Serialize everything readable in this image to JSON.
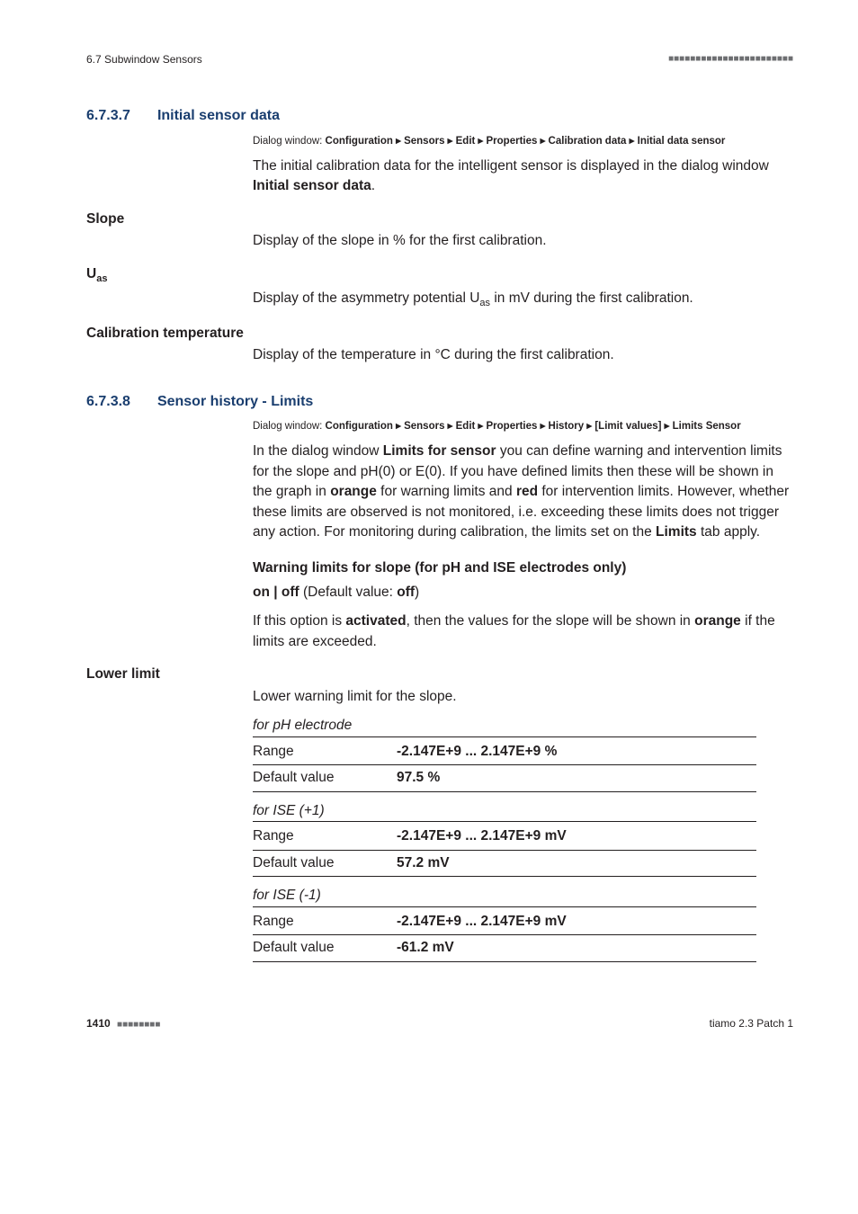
{
  "header": {
    "left": "6.7 Subwindow Sensors",
    "right": "■■■■■■■■■■■■■■■■■■■■■■■"
  },
  "section1": {
    "num": "6.7.3.7",
    "title": "Initial sensor data",
    "dialog_prefix": "Dialog window: ",
    "dialog_path": "Configuration ▸ Sensors ▸ Edit ▸ Properties ▸ Calibration data ▸ Initial data sensor",
    "intro_pre": "The initial calibration data for the intelligent sensor is displayed in the dialog window ",
    "intro_bold": "Initial sensor data",
    "intro_post": ".",
    "slope": {
      "label": "Slope",
      "text": "Display of the slope in % for the first calibration."
    },
    "uas": {
      "label_pre": "U",
      "label_sub": "as",
      "text_pre": "Display of the asymmetry potential U",
      "text_sub": "as",
      "text_post": " in mV during the first calibration."
    },
    "caltemp": {
      "label": "Calibration temperature",
      "text": "Display of the temperature in °C during the first calibration."
    }
  },
  "section2": {
    "num": "6.7.3.8",
    "title": "Sensor history - Limits",
    "dialog_prefix": "Dialog window: ",
    "dialog_path": "Configuration ▸ Sensors ▸ Edit ▸ Properties ▸ History ▸ [Limit values] ▸ Limits Sensor",
    "para_pre": "In the dialog window ",
    "para_b1": "Limits for sensor",
    "para_mid1": " you can define warning and intervention limits for the slope and pH(0) or E(0). If you have defined limits then these will be shown in the graph in ",
    "para_b2": "orange",
    "para_mid2": " for warning limits and ",
    "para_b3": "red",
    "para_mid3": " for intervention limits. However, whether these limits are observed is not monitored, i.e. exceeding these limits does not trigger any action. For monitoring during calibration, the limits set on the ",
    "para_b4": "Limits",
    "para_post": " tab apply.",
    "warn_heading": "Warning limits for slope (for pH and ISE electrodes only)",
    "onoff_pre": "on | off",
    "onoff_mid": " (Default value: ",
    "onoff_b": "off",
    "onoff_post": ")",
    "activated_pre": "If this option is ",
    "activated_b": "activated",
    "activated_mid": ", then the values for the slope will be shown in ",
    "activated_b2": "orange",
    "activated_post": " if the limits are exceeded.",
    "lower_limit_label": "Lower limit",
    "lower_limit_text": "Lower warning limit for the slope.",
    "groups": [
      {
        "label": "for pH electrode",
        "range_key": "Range",
        "range_val": "-2.147E+9 ... 2.147E+9 %",
        "default_key": "Default value",
        "default_val": "97.5 %"
      },
      {
        "label": "for ISE (+1)",
        "range_key": "Range",
        "range_val": "-2.147E+9 ... 2.147E+9 mV",
        "default_key": "Default value",
        "default_val": "57.2 mV"
      },
      {
        "label": "for ISE (-1)",
        "range_key": "Range",
        "range_val": "-2.147E+9 ... 2.147E+9 mV",
        "default_key": "Default value",
        "default_val": "-61.2 mV"
      }
    ]
  },
  "footer": {
    "page": "1410",
    "squares": "■■■■■■■■",
    "right": "tiamo 2.3 Patch 1"
  }
}
